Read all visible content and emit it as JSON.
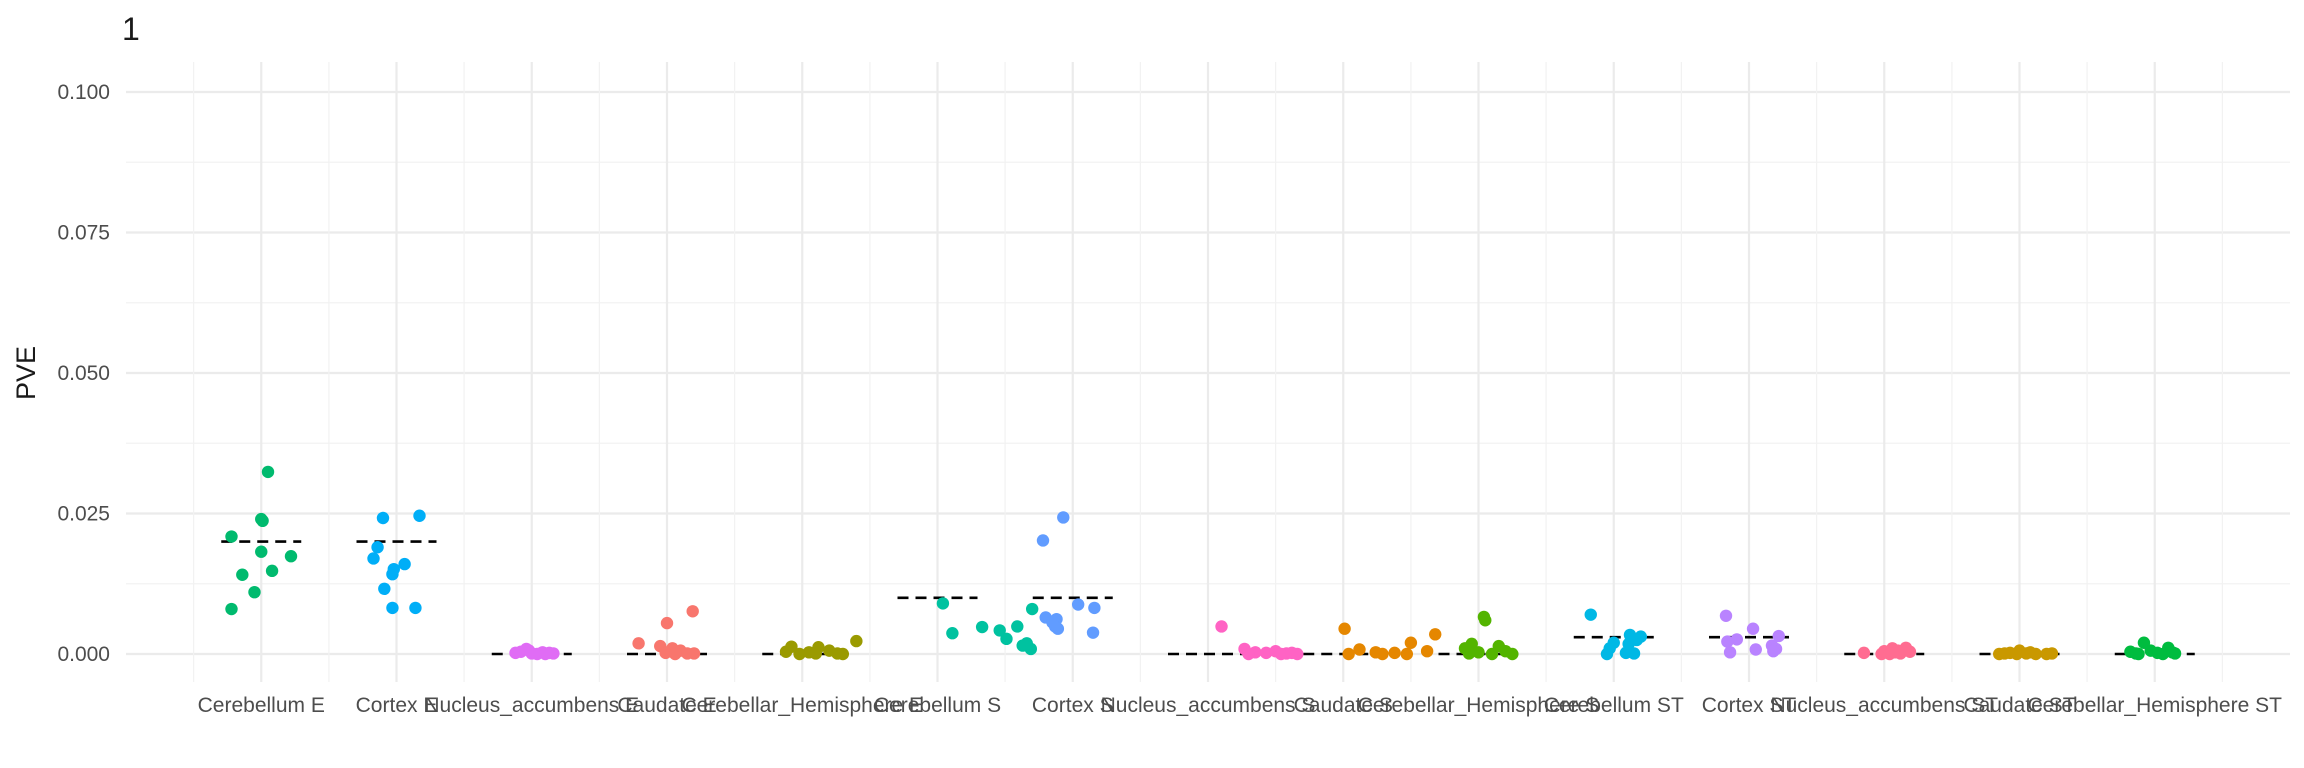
{
  "chart_data": {
    "type": "scatter",
    "title": "1",
    "xlabel": "",
    "ylabel": "PVE",
    "ylim": [
      -0.005,
      0.105
    ],
    "yticks": [
      "0.000",
      "0.025",
      "0.050",
      "0.075",
      "0.100"
    ],
    "ytick_values": [
      0,
      0.025,
      0.05,
      0.075,
      0.1
    ],
    "grid": true,
    "legend": "none",
    "categories": [
      "Cerebellum E",
      "Cortex E",
      "Nucleus_accumbens E",
      "Caudate E",
      "Cerebellar_Hemisphere E",
      "Cerebellum S",
      "Cortex S",
      "Nucleus_accumbens S",
      "Caudate S",
      "Cerebellar_Hemisphere S",
      "Cerebellum ST",
      "Cortex ST",
      "Nucleus_accumbens ST",
      "Caudate ST",
      "Cerebellar_Hemisphere ST"
    ],
    "colors": [
      "#00BA6E",
      "#00AEF7",
      "#E06CF5",
      "#F8766D",
      "#9A9A00",
      "#00C2A0",
      "#619CFF",
      "#FF63C4",
      "#E58700",
      "#53B400",
      "#00B8E5",
      "#B983FF",
      "#FF6C91",
      "#C99800",
      "#00BC3F"
    ],
    "reference_values": [
      0.02,
      0.02,
      0,
      0,
      0,
      0.01,
      0.01,
      0,
      0,
      0,
      0.003,
      0.003,
      0,
      0,
      0
    ],
    "series": [
      {
        "points": [
          {
            "x": 0.05,
            "y": 0.0324
          },
          {
            "x": 0.0,
            "y": 0.024
          },
          {
            "x": 0.01,
            "y": 0.0237
          },
          {
            "x": -0.22,
            "y": 0.0209
          },
          {
            "x": 0.0,
            "y": 0.0182
          },
          {
            "x": 0.22,
            "y": 0.0174
          },
          {
            "x": 0.08,
            "y": 0.0148
          },
          {
            "x": -0.14,
            "y": 0.0141
          },
          {
            "x": -0.05,
            "y": 0.011
          },
          {
            "x": -0.22,
            "y": 0.008
          }
        ]
      },
      {
        "points": [
          {
            "x": -0.1,
            "y": 0.0242
          },
          {
            "x": 0.17,
            "y": 0.0246
          },
          {
            "x": -0.14,
            "y": 0.019
          },
          {
            "x": -0.17,
            "y": 0.017
          },
          {
            "x": 0.06,
            "y": 0.016
          },
          {
            "x": -0.02,
            "y": 0.0151
          },
          {
            "x": -0.03,
            "y": 0.0142
          },
          {
            "x": -0.09,
            "y": 0.0116
          },
          {
            "x": -0.03,
            "y": 0.0082
          },
          {
            "x": 0.14,
            "y": 0.0082
          }
        ]
      },
      {
        "points": [
          {
            "x": -0.12,
            "y": 0.0002
          },
          {
            "x": -0.04,
            "y": 0.0009
          },
          {
            "x": 0.0,
            "y": 0.0001
          },
          {
            "x": 0.08,
            "y": 0.0003
          },
          {
            "x": 0.13,
            "y": 0.0002
          },
          {
            "x": -0.08,
            "y": 0.0004
          },
          {
            "x": 0.04,
            "y": 0.0
          },
          {
            "x": 0.16,
            "y": 0.0001
          },
          {
            "x": -0.02,
            "y": 0.0006
          },
          {
            "x": 0.1,
            "y": 0.0
          }
        ]
      },
      {
        "points": [
          {
            "x": 0.0,
            "y": 0.0055
          },
          {
            "x": 0.19,
            "y": 0.0076
          },
          {
            "x": -0.21,
            "y": 0.0019
          },
          {
            "x": -0.05,
            "y": 0.0014
          },
          {
            "x": 0.04,
            "y": 0.001
          },
          {
            "x": 0.1,
            "y": 0.0006
          },
          {
            "x": -0.01,
            "y": 0.0002
          },
          {
            "x": 0.15,
            "y": 0.0001
          },
          {
            "x": 0.06,
            "y": 0.0
          },
          {
            "x": 0.2,
            "y": 0.0001
          }
        ]
      },
      {
        "points": [
          {
            "x": 0.4,
            "y": 0.0023
          },
          {
            "x": -0.08,
            "y": 0.0013
          },
          {
            "x": 0.12,
            "y": 0.0012
          },
          {
            "x": 0.2,
            "y": 0.0006
          },
          {
            "x": -0.12,
            "y": 0.0004
          },
          {
            "x": 0.05,
            "y": 0.0003
          },
          {
            "x": 0.26,
            "y": 0.0001
          },
          {
            "x": -0.02,
            "y": 0.0
          },
          {
            "x": 0.3,
            "y": 0.0
          },
          {
            "x": 0.1,
            "y": 0.0001
          }
        ]
      },
      {
        "points": [
          {
            "x": 0.04,
            "y": 0.009
          },
          {
            "x": 0.7,
            "y": 0.008
          },
          {
            "x": 0.33,
            "y": 0.0048
          },
          {
            "x": 0.59,
            "y": 0.0049
          },
          {
            "x": 0.46,
            "y": 0.0042
          },
          {
            "x": 0.11,
            "y": 0.0037
          },
          {
            "x": 0.51,
            "y": 0.0027
          },
          {
            "x": 0.66,
            "y": 0.0019
          },
          {
            "x": 0.63,
            "y": 0.0015
          },
          {
            "x": 0.69,
            "y": 0.0009
          }
        ]
      },
      {
        "points": [
          {
            "x": -0.07,
            "y": 0.0243
          },
          {
            "x": -0.22,
            "y": 0.0202
          },
          {
            "x": 0.04,
            "y": 0.0088
          },
          {
            "x": 0.16,
            "y": 0.0082
          },
          {
            "x": -0.2,
            "y": 0.0065
          },
          {
            "x": -0.12,
            "y": 0.0062
          },
          {
            "x": -0.15,
            "y": 0.0056
          },
          {
            "x": -0.13,
            "y": 0.0049
          },
          {
            "x": -0.11,
            "y": 0.0045
          },
          {
            "x": 0.15,
            "y": 0.0038
          }
        ]
      },
      {
        "points": [
          {
            "x": 0.1,
            "y": 0.0049
          },
          {
            "x": 0.27,
            "y": 0.0009
          },
          {
            "x": 0.35,
            "y": 0.0003
          },
          {
            "x": 0.43,
            "y": 0.0002
          },
          {
            "x": 0.5,
            "y": 0.0005
          },
          {
            "x": 0.58,
            "y": 0.0001
          },
          {
            "x": 0.66,
            "y": 0.0
          },
          {
            "x": 0.3,
            "y": 0.0
          },
          {
            "x": 0.54,
            "y": 0.0
          },
          {
            "x": 0.62,
            "y": 0.0002
          }
        ]
      },
      {
        "points": [
          {
            "x": 0.01,
            "y": 0.0045
          },
          {
            "x": 0.68,
            "y": 0.0035
          },
          {
            "x": 0.5,
            "y": 0.002
          },
          {
            "x": 0.12,
            "y": 0.0008
          },
          {
            "x": 0.62,
            "y": 0.0005
          },
          {
            "x": 0.24,
            "y": 0.0003
          },
          {
            "x": 0.38,
            "y": 0.0002
          },
          {
            "x": 0.04,
            "y": 0.0
          },
          {
            "x": 0.47,
            "y": 0.0
          },
          {
            "x": 0.29,
            "y": 0.0
          }
        ]
      },
      {
        "points": [
          {
            "x": 0.04,
            "y": 0.0066
          },
          {
            "x": 0.05,
            "y": 0.006
          },
          {
            "x": -0.05,
            "y": 0.0018
          },
          {
            "x": 0.15,
            "y": 0.0014
          },
          {
            "x": -0.1,
            "y": 0.001
          },
          {
            "x": 0.2,
            "y": 0.0005
          },
          {
            "x": 0.0,
            "y": 0.0003
          },
          {
            "x": 0.1,
            "y": 0.0
          },
          {
            "x": 0.25,
            "y": 0.0
          },
          {
            "x": -0.07,
            "y": 0.0001
          }
        ]
      },
      {
        "points": [
          {
            "x": -0.17,
            "y": 0.007
          },
          {
            "x": 0.12,
            "y": 0.0034
          },
          {
            "x": 0.2,
            "y": 0.0031
          },
          {
            "x": 0.17,
            "y": 0.0025
          },
          {
            "x": 0.0,
            "y": 0.002
          },
          {
            "x": 0.11,
            "y": 0.0018
          },
          {
            "x": -0.03,
            "y": 0.001
          },
          {
            "x": 0.09,
            "y": 0.0002
          },
          {
            "x": 0.15,
            "y": 0.0001
          },
          {
            "x": -0.05,
            "y": 0.0
          }
        ]
      },
      {
        "points": [
          {
            "x": -0.17,
            "y": 0.0068
          },
          {
            "x": 0.03,
            "y": 0.0045
          },
          {
            "x": 0.22,
            "y": 0.0032
          },
          {
            "x": -0.09,
            "y": 0.0026
          },
          {
            "x": -0.16,
            "y": 0.0022
          },
          {
            "x": 0.17,
            "y": 0.0015
          },
          {
            "x": 0.2,
            "y": 0.0009
          },
          {
            "x": 0.05,
            "y": 0.0008
          },
          {
            "x": -0.14,
            "y": 0.0003
          },
          {
            "x": 0.18,
            "y": 0.0005
          }
        ]
      },
      {
        "points": [
          {
            "x": -0.15,
            "y": 0.0002
          },
          {
            "x": 0.06,
            "y": 0.001
          },
          {
            "x": 0.16,
            "y": 0.0011
          },
          {
            "x": 0.0,
            "y": 0.0005
          },
          {
            "x": 0.08,
            "y": 0.0003
          },
          {
            "x": 0.12,
            "y": 0.0001
          },
          {
            "x": -0.02,
            "y": 0.0
          },
          {
            "x": 0.04,
            "y": 0.0
          },
          {
            "x": 0.19,
            "y": 0.0004
          },
          {
            "x": 0.1,
            "y": 0.0006
          }
        ]
      },
      {
        "points": [
          {
            "x": 0.0,
            "y": 0.0006
          },
          {
            "x": 0.24,
            "y": 0.0001
          },
          {
            "x": -0.07,
            "y": 0.0002
          },
          {
            "x": 0.05,
            "y": 0.0001
          },
          {
            "x": 0.12,
            "y": 0.0
          },
          {
            "x": -0.15,
            "y": 0.0
          },
          {
            "x": -0.02,
            "y": 0.0
          },
          {
            "x": 0.08,
            "y": 0.0003
          },
          {
            "x": 0.2,
            "y": 0.0
          },
          {
            "x": -0.11,
            "y": 0.0001
          }
        ]
      },
      {
        "points": [
          {
            "x": -0.08,
            "y": 0.002
          },
          {
            "x": 0.1,
            "y": 0.0011
          },
          {
            "x": -0.18,
            "y": 0.0004
          },
          {
            "x": -0.03,
            "y": 0.0006
          },
          {
            "x": 0.02,
            "y": 0.0002
          },
          {
            "x": 0.15,
            "y": 0.0001
          },
          {
            "x": 0.06,
            "y": 0.0
          },
          {
            "x": -0.12,
            "y": 0.0
          },
          {
            "x": -0.14,
            "y": 0.0001
          },
          {
            "x": 0.13,
            "y": 0.0003
          }
        ]
      }
    ]
  }
}
